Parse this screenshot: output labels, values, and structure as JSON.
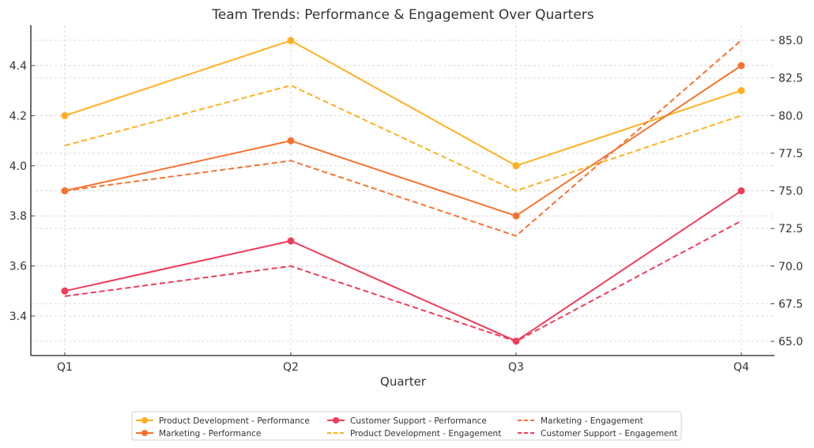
{
  "chart_data": {
    "type": "line",
    "title": "Team Trends: Performance & Engagement Over Quarters",
    "xlabel": "Quarter",
    "ylabel_left": "",
    "ylabel_right": "",
    "categories": [
      "Q1",
      "Q2",
      "Q3",
      "Q4"
    ],
    "ylim_left": [
      3.25,
      4.55
    ],
    "ylim_right": [
      64.0,
      85.7
    ],
    "yticks_left": [
      3.4,
      3.6,
      3.8,
      4.0,
      4.2,
      4.4
    ],
    "ytick_labels_left": [
      "3.4",
      "3.6",
      "3.8",
      "4.0",
      "4.2",
      "4.4"
    ],
    "yticks_right": [
      65.0,
      67.5,
      70.0,
      72.5,
      75.0,
      77.5,
      80.0,
      82.5,
      85.0
    ],
    "ytick_labels_right": [
      "65.0",
      "67.5",
      "70.0",
      "72.5",
      "75.0",
      "77.5",
      "80.0",
      "82.5",
      "85.0"
    ],
    "grid": true,
    "legend_position": "bottom-center",
    "series": [
      {
        "name": "Product Development - Performance",
        "axis": "left",
        "style": "solid",
        "marker": true,
        "color": "#FFB020",
        "values": [
          4.2,
          4.5,
          4.0,
          4.3
        ]
      },
      {
        "name": "Marketing - Performance",
        "axis": "left",
        "style": "solid",
        "marker": true,
        "color": "#F57330",
        "values": [
          3.9,
          4.1,
          3.8,
          4.4
        ]
      },
      {
        "name": "Customer Support - Performance",
        "axis": "left",
        "style": "solid",
        "marker": true,
        "color": "#F03C5A",
        "values": [
          3.5,
          3.7,
          3.3,
          3.9
        ]
      },
      {
        "name": "Product Development - Engagement",
        "axis": "right",
        "style": "dashed",
        "marker": false,
        "color": "#FFB020",
        "values": [
          78,
          82,
          75,
          80
        ]
      },
      {
        "name": "Marketing - Engagement",
        "axis": "right",
        "style": "dashed",
        "marker": false,
        "color": "#F57330",
        "values": [
          75,
          77,
          72,
          85
        ]
      },
      {
        "name": "Customer Support - Engagement",
        "axis": "right",
        "style": "dashed",
        "marker": false,
        "color": "#F03C5A",
        "values": [
          68,
          70,
          65,
          73
        ]
      }
    ],
    "legend_order": [
      "Product Development - Performance",
      "Marketing - Performance",
      "Customer Support - Performance",
      "Product Development - Engagement",
      "Marketing - Engagement",
      "Customer Support - Engagement"
    ]
  }
}
